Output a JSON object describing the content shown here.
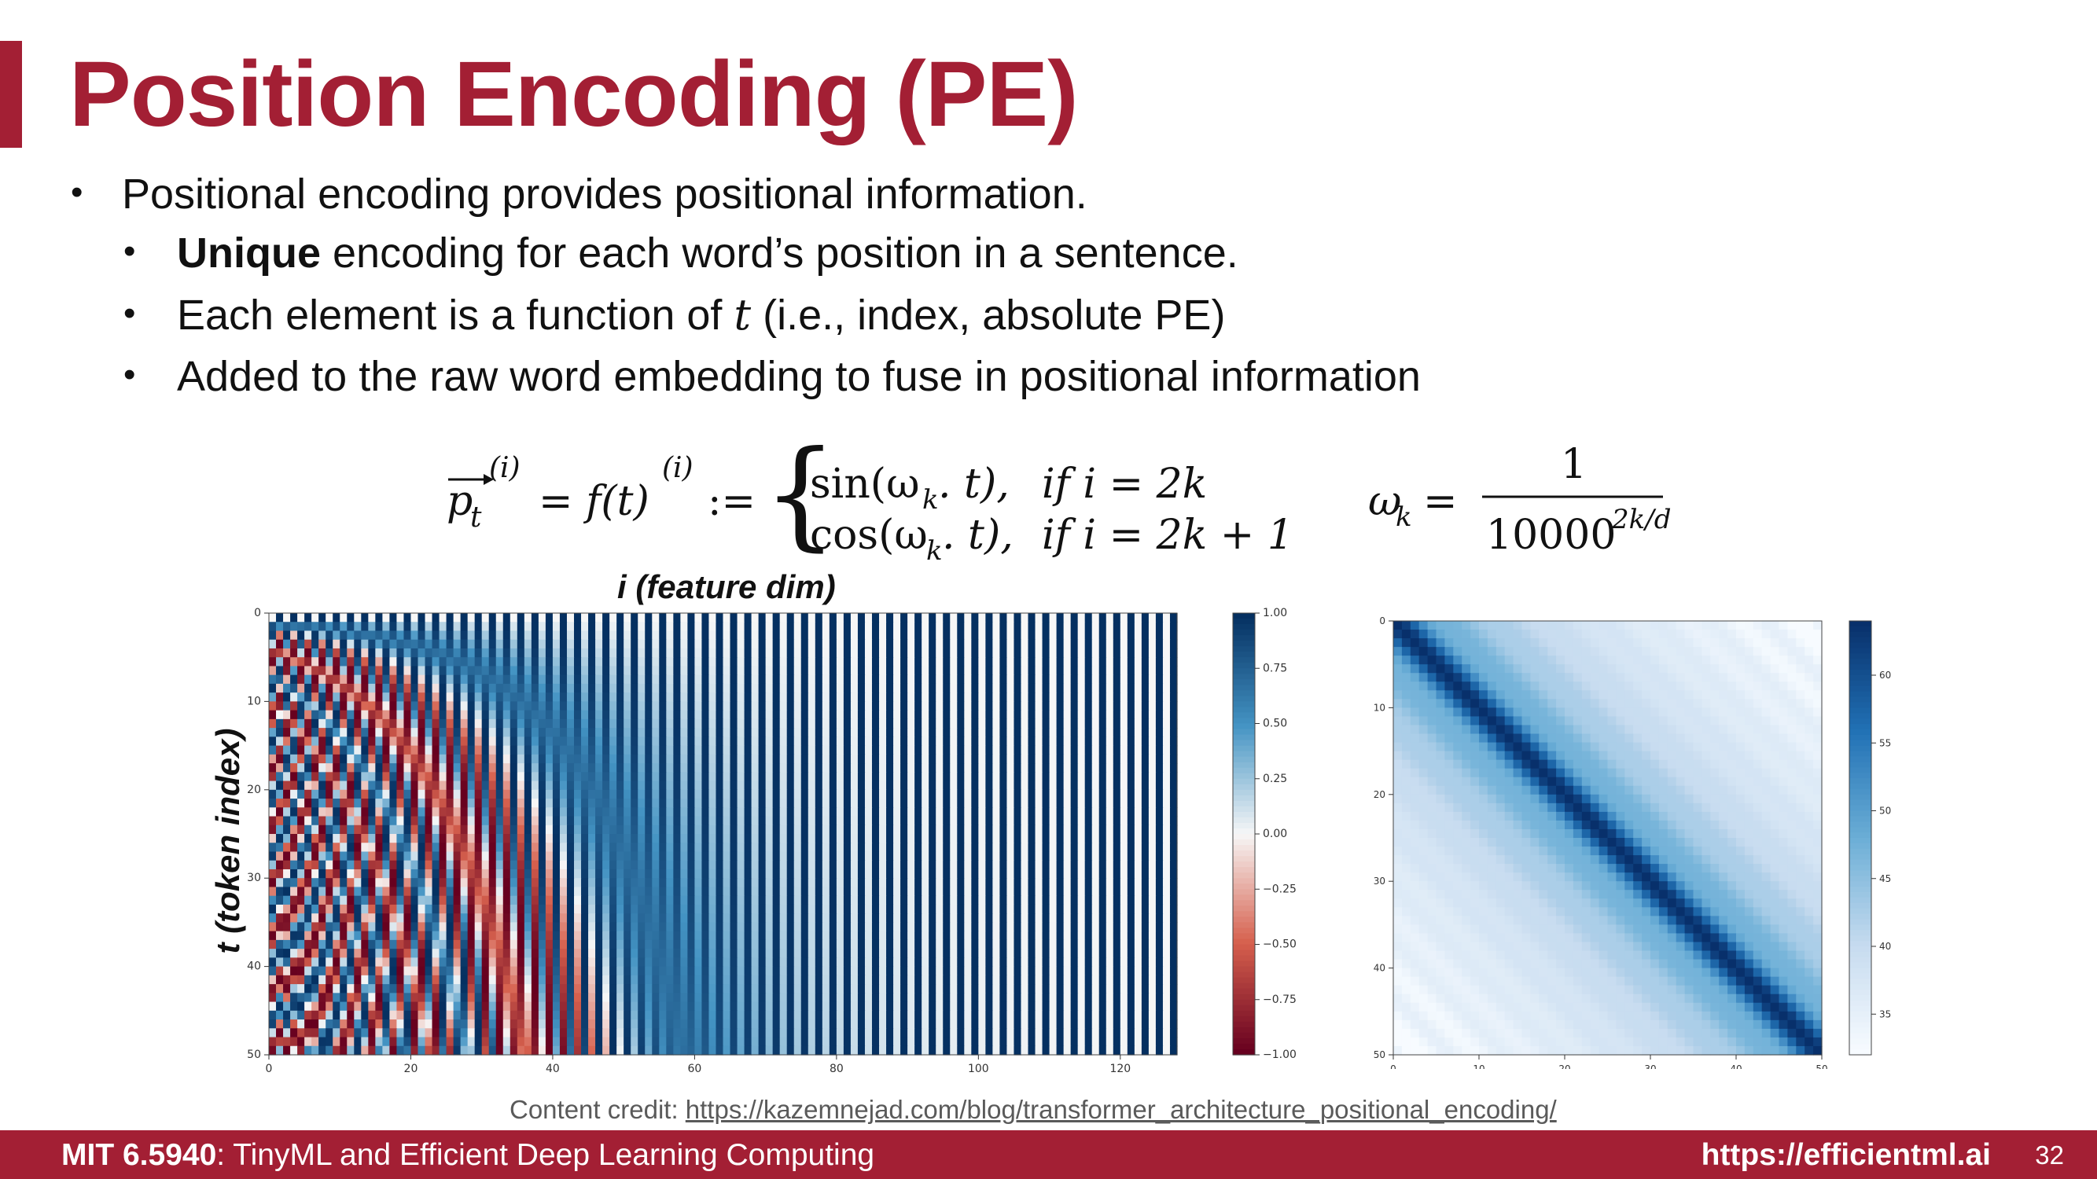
{
  "slide": {
    "title": "Position Encoding (PE)",
    "bullet_main": "Positional encoding provides positional information.",
    "sub1_bold": "Unique",
    "sub1_rest": " encoding for each word’s position in a sentence.",
    "sub2_pre": "Each element is a function of ",
    "sub2_var": "t",
    "sub2_post": " (i.e., index, absolute PE)",
    "sub3": "Added to the raw word embedding to fuse in positional information",
    "bullet_glyph": "•"
  },
  "formula": {
    "p_sym": "p",
    "sub_t": "t",
    "sup_i": "(i)",
    "eq_f": "= f(t)",
    "assign": ":=",
    "row1_fn": "sin(ω",
    "row1_sub": "k",
    "row1_tail": ". t),",
    "row1_cond": "if i = 2k",
    "row2_fn": "cos(ω",
    "row2_sub": "k",
    "row2_tail": ". t),",
    "row2_cond": "if i = 2k + 1",
    "omega": "ω",
    "omega_sub": "k",
    "eq": "=",
    "numerator": "1",
    "denominator": "10000",
    "exponent": "2k/d"
  },
  "axis_labels": {
    "x": "i (feature dim)",
    "y": "t (token index)"
  },
  "chart_data": [
    {
      "type": "heatmap",
      "description_of_values": "sinusoidal positional encoding PE[t, i]",
      "x_ticks": [
        0,
        20,
        40,
        60,
        80,
        100,
        120
      ],
      "y_ticks": [
        0,
        10,
        20,
        30,
        40,
        50
      ],
      "xlim": [
        0,
        128
      ],
      "ylim": [
        0,
        50
      ],
      "colorbar_ticks": [
        "1.00",
        "0.75",
        "0.50",
        "0.25",
        "0.00",
        "−0.25",
        "−0.50",
        "−0.75",
        "−1.00"
      ],
      "colorbar_range": [
        -1,
        1
      ],
      "colormap": [
        "#67001f",
        "#d6604d",
        "#f7f7f7",
        "#4393c3",
        "#053061"
      ]
    },
    {
      "type": "heatmap",
      "description_of_values": "dot product of position encodings between positions",
      "x_ticks": [
        0,
        10,
        20,
        30,
        40,
        50
      ],
      "y_ticks": [
        0,
        10,
        20,
        30,
        40,
        50
      ],
      "xlim": [
        0,
        50
      ],
      "ylim": [
        0,
        50
      ],
      "colorbar_ticks": [
        "60",
        "55",
        "50",
        "45",
        "40",
        "35"
      ],
      "colorbar_range": [
        32,
        64
      ],
      "colormap": [
        "#f7fbff",
        "#c6dbef",
        "#6baed6",
        "#2171b5",
        "#08306b"
      ]
    }
  ],
  "credit": {
    "prefix": "Content credit: ",
    "link": "https://kazemnejad.com/blog/transformer_architecture_positional_encoding/"
  },
  "footer": {
    "course": "MIT 6.5940",
    "course_title": ": TinyML and Efficient Deep Learning Computing",
    "site": "https://efficientml.ai",
    "page": "32"
  },
  "colors": {
    "accent": "#a31f34"
  }
}
